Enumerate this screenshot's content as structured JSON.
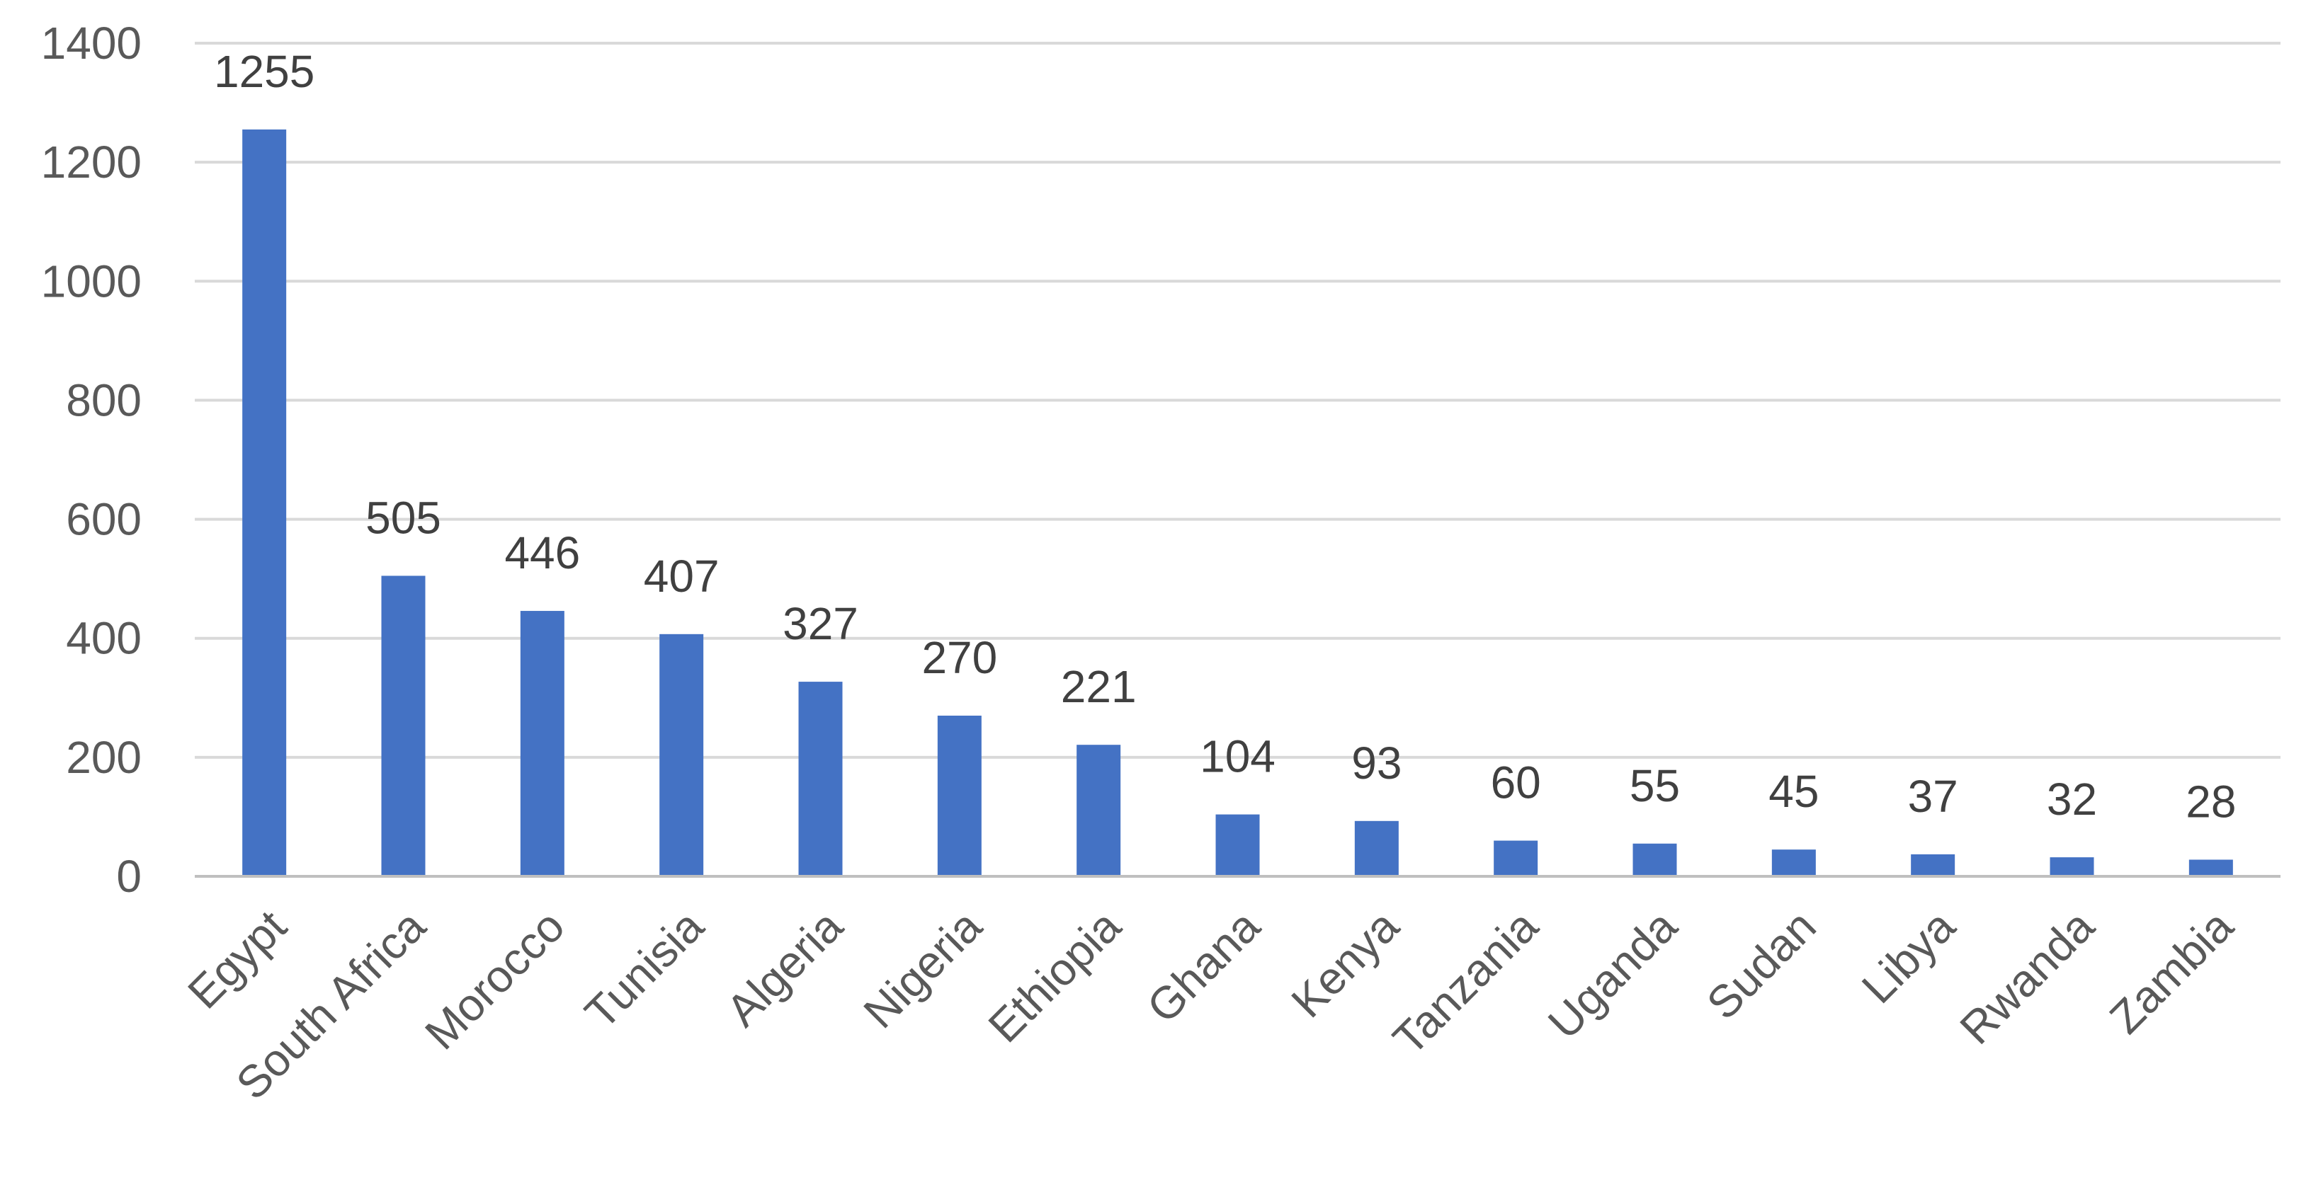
{
  "chart_data": {
    "type": "bar",
    "title": "",
    "xlabel": "",
    "ylabel": "",
    "categories": [
      "Egypt",
      "South Africa",
      "Morocco",
      "Tunisia",
      "Algeria",
      "Nigeria",
      "Ethiopia",
      "Ghana",
      "Kenya",
      "Tanzania",
      "Uganda",
      "Sudan",
      "Libya",
      "Rwanda",
      "Zambia"
    ],
    "values": [
      1255,
      505,
      446,
      407,
      327,
      270,
      221,
      104,
      93,
      60,
      55,
      45,
      37,
      32,
      28
    ],
    "ylim": [
      0,
      1400
    ],
    "yticks": [
      0,
      200,
      400,
      600,
      800,
      1000,
      1200,
      1400
    ],
    "grid": true,
    "legend": "none",
    "data_labels": true,
    "x_tick_rotation_deg": -45,
    "colors": {
      "bar": "#4472C4",
      "grid": "#D9D9D9",
      "axis": "#BFBFBF",
      "tick_text": "#595959",
      "data_label_text": "#404040"
    }
  }
}
